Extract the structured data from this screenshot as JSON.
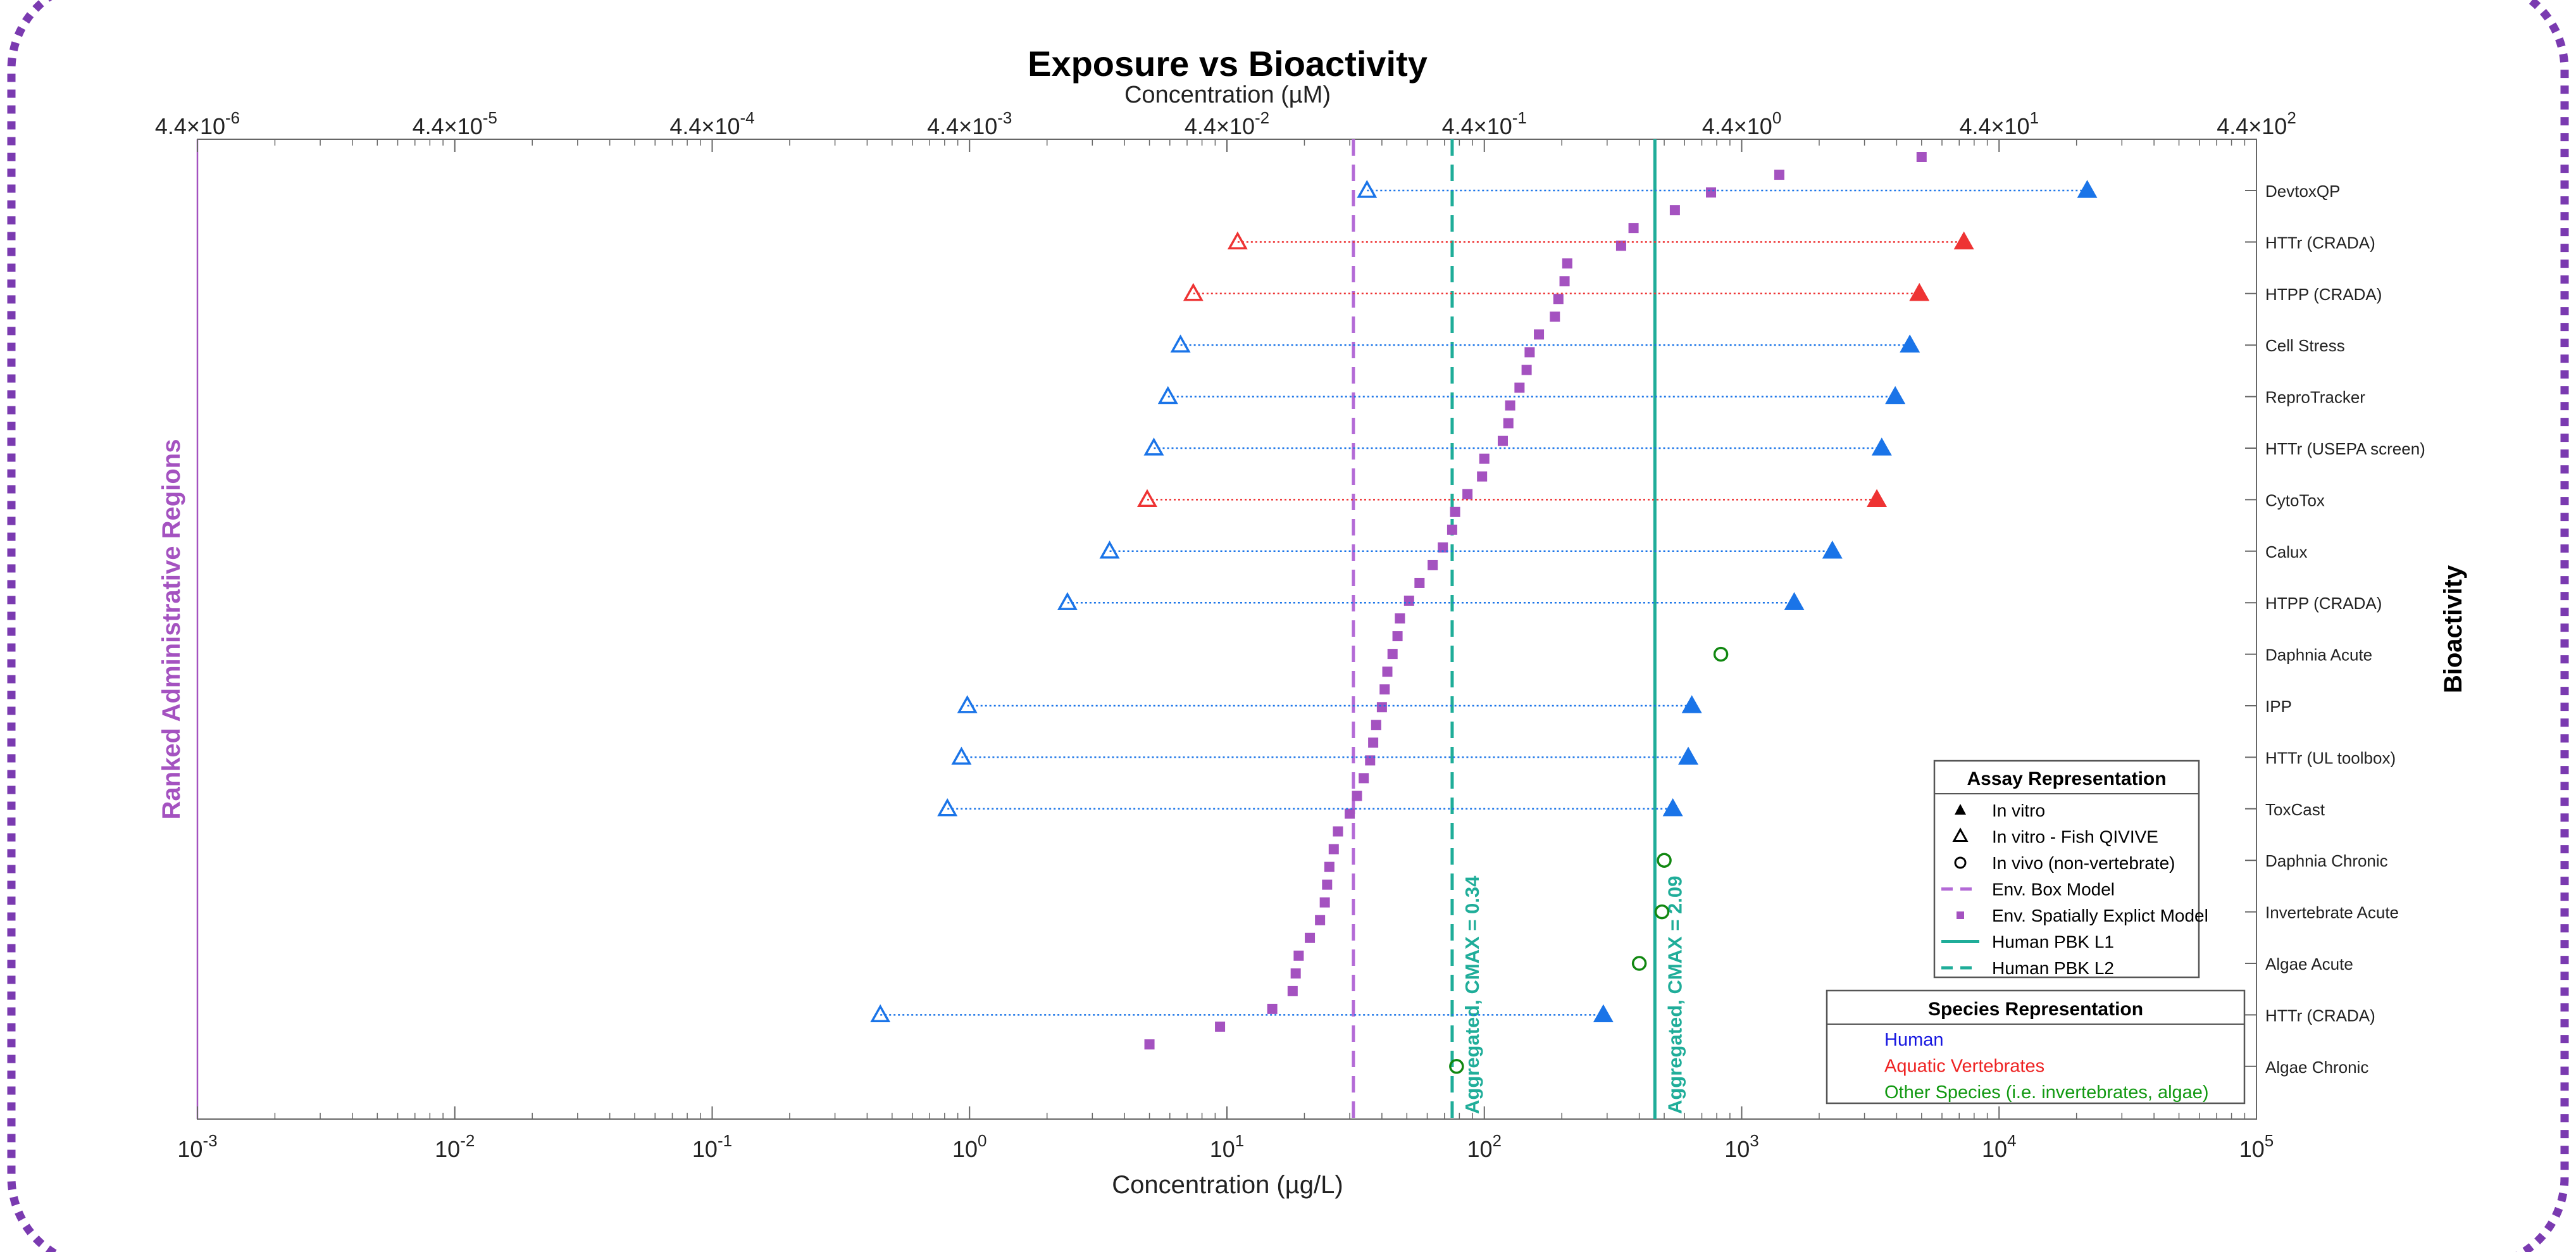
{
  "chart_data": {
    "type": "scatter",
    "title": "Exposure vs Bioactivity",
    "xlabel": "Concentration (µg/L)",
    "x2label": "Concentration (µM)",
    "ylabel_left": "Ranked Administrative Regions",
    "ylabel_right": "Bioactivity",
    "xscale": "log",
    "xlim": [
      0.001,
      100000
    ],
    "x_ticks": [
      "10^-3",
      "10^-2",
      "10^-1",
      "10^0",
      "10^1",
      "10^2",
      "10^3",
      "10^4",
      "10^5"
    ],
    "x_tick_values": [
      0.001,
      0.01,
      0.1,
      1,
      10,
      100,
      1000,
      10000,
      100000
    ],
    "x2_ticks": [
      "4.4×10^-6",
      "4.4×10^-5",
      "4.4×10^-4",
      "4.4×10^-3",
      "4.4×10^-2",
      "4.4×10^-1",
      "4.4×10^0",
      "4.4×10^1",
      "4.4×10^2"
    ],
    "grid": false,
    "categories": [
      "DevtoxQP",
      "HTTr (CRADA)",
      "HTPP (CRADA)",
      "Cell Stress",
      "ReproTracker",
      "HTTr (USEPA screen)",
      "CytoTox",
      "Calux",
      "HTPP (CRADA)",
      "Daphnia Acute",
      "IPP",
      "HTTr (UL toolbox)",
      "ToxCast",
      "Daphnia Chronic",
      "Invertebrate Acute",
      "Algae Acute",
      "HTTr (CRADA)",
      "Algae Chronic"
    ],
    "assays": [
      {
        "label": "DevtoxQP",
        "lower": 35,
        "upper": 22000,
        "group": "Human",
        "color": "#1a74e8",
        "marker": "triangle"
      },
      {
        "label": "HTTr (CRADA)",
        "lower": 11,
        "upper": 7300,
        "group": "Aquatic Vertebrates",
        "color": "#ee3333",
        "marker": "triangle"
      },
      {
        "label": "HTPP (CRADA)",
        "lower": 7.4,
        "upper": 4900,
        "group": "Aquatic Vertebrates",
        "color": "#ee3333",
        "marker": "triangle"
      },
      {
        "label": "Cell Stress",
        "lower": 6.6,
        "upper": 4500,
        "group": "Human",
        "color": "#1a74e8",
        "marker": "triangle"
      },
      {
        "label": "ReproTracker",
        "lower": 5.9,
        "upper": 3950,
        "group": "Human",
        "color": "#1a74e8",
        "marker": "triangle"
      },
      {
        "label": "HTTr (USEPA screen)",
        "lower": 5.2,
        "upper": 3500,
        "group": "Human",
        "color": "#1a74e8",
        "marker": "triangle"
      },
      {
        "label": "CytoTox",
        "lower": 4.9,
        "upper": 3350,
        "group": "Aquatic Vertebrates",
        "color": "#ee3333",
        "marker": "triangle"
      },
      {
        "label": "Calux",
        "lower": 3.5,
        "upper": 2250,
        "group": "Human",
        "color": "#1a74e8",
        "marker": "triangle"
      },
      {
        "label": "HTPP (CRADA)",
        "lower": 2.4,
        "upper": 1600,
        "group": "Human",
        "color": "#1a74e8",
        "marker": "triangle"
      },
      {
        "label": "Daphnia Acute",
        "value": 830,
        "group": "Other Species (i.e. invertebrates, algae)",
        "color": "#118811",
        "marker": "circle"
      },
      {
        "label": "IPP",
        "lower": 0.98,
        "upper": 640,
        "group": "Human",
        "color": "#1a74e8",
        "marker": "triangle"
      },
      {
        "label": "HTTr (UL toolbox)",
        "lower": 0.93,
        "upper": 620,
        "group": "Human",
        "color": "#1a74e8",
        "marker": "triangle"
      },
      {
        "label": "ToxCast",
        "lower": 0.82,
        "upper": 540,
        "group": "Human",
        "color": "#1a74e8",
        "marker": "triangle"
      },
      {
        "label": "Daphnia Chronic",
        "value": 500,
        "group": "Other Species (i.e. invertebrates, algae)",
        "color": "#118811",
        "marker": "circle"
      },
      {
        "label": "Invertebrate Acute",
        "value": 490,
        "group": "Other Species (i.e. invertebrates, algae)",
        "color": "#118811",
        "marker": "circle"
      },
      {
        "label": "Algae Acute",
        "value": 400,
        "group": "Other Species (i.e. invertebrates, algae)",
        "color": "#118811",
        "marker": "circle"
      },
      {
        "label": "HTTr (CRADA)",
        "lower": 0.45,
        "upper": 290,
        "group": "Human",
        "color": "#1a74e8",
        "marker": "triangle"
      },
      {
        "label": "Algae Chronic",
        "value": 78,
        "group": "Other Species (i.e. invertebrates, algae)",
        "color": "#118811",
        "marker": "circle"
      }
    ],
    "spatial_model_points": [
      5.0,
      9.4,
      15,
      18,
      18.5,
      19,
      21,
      23,
      24,
      24.5,
      25,
      26,
      27,
      30,
      32,
      34,
      36,
      37,
      38,
      40,
      41,
      42,
      44,
      46,
      47,
      51,
      56,
      63,
      69,
      75,
      77,
      86,
      98,
      100,
      118,
      124,
      126,
      137,
      146,
      150,
      163,
      188,
      194,
      205,
      210,
      340,
      380,
      550,
      760,
      1400,
      5000
    ],
    "vertical_lines": [
      {
        "name": "Env. Box Model",
        "x": 31,
        "style": "dashed",
        "color": "#b36ad6",
        "label": ""
      },
      {
        "name": "Human PBK L2",
        "x": 75,
        "style": "dashed",
        "color": "#1fad99",
        "label": "Aggregated, CMAX = 0.34"
      },
      {
        "name": "Human PBK L1",
        "x": 460,
        "style": "solid",
        "color": "#1fad99",
        "label": "Aggregated, CMAX = 2.09"
      }
    ],
    "legend_assay": {
      "title": "Assay Representation",
      "placement": "bottom-right",
      "entries": [
        "In vitro",
        "In vitro - Fish QIVIVE",
        "In vivo (non-vertebrate)",
        "Env. Box Model",
        "Env. Spatially Explict Model",
        "Human PBK L1",
        "Human PBK L2"
      ]
    },
    "legend_species": {
      "title": "Species Representation",
      "placement": "bottom-right",
      "entries": [
        {
          "name": "Human",
          "color": "#1515e0"
        },
        {
          "name": "Aquatic Vertebrates",
          "color": "#ee2222"
        },
        {
          "name": "Other Species (i.e. invertebrates, algae)",
          "color": "#119911"
        }
      ]
    },
    "colors": {
      "human": "#1a74e8",
      "aquatic": "#ee3333",
      "other": "#118811",
      "env_box": "#b36ad6",
      "spatial": "#a452c0",
      "pbk": "#1fad99",
      "frame": "#7a3ab0"
    }
  }
}
